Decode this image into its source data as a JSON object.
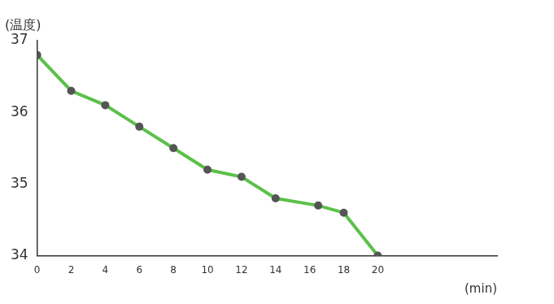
{
  "chart_data": {
    "type": "line",
    "y_label": "(温度)",
    "x_label": "(min)",
    "x": [
      0,
      2,
      4,
      6,
      8,
      10,
      12,
      14,
      16.5,
      18,
      20
    ],
    "values": [
      36.8,
      36.3,
      36.1,
      35.8,
      35.5,
      35.2,
      35.1,
      34.8,
      34.7,
      34.6,
      34.0
    ],
    "color": "#5cc04a",
    "marker": "circle",
    "xlim": [
      0,
      27
    ],
    "xticks": [
      0,
      2,
      4,
      6,
      8,
      10,
      12,
      14,
      16,
      18,
      20
    ],
    "ylim": [
      34,
      37
    ],
    "yticks": [
      34,
      35,
      36,
      37
    ],
    "grid": false
  }
}
